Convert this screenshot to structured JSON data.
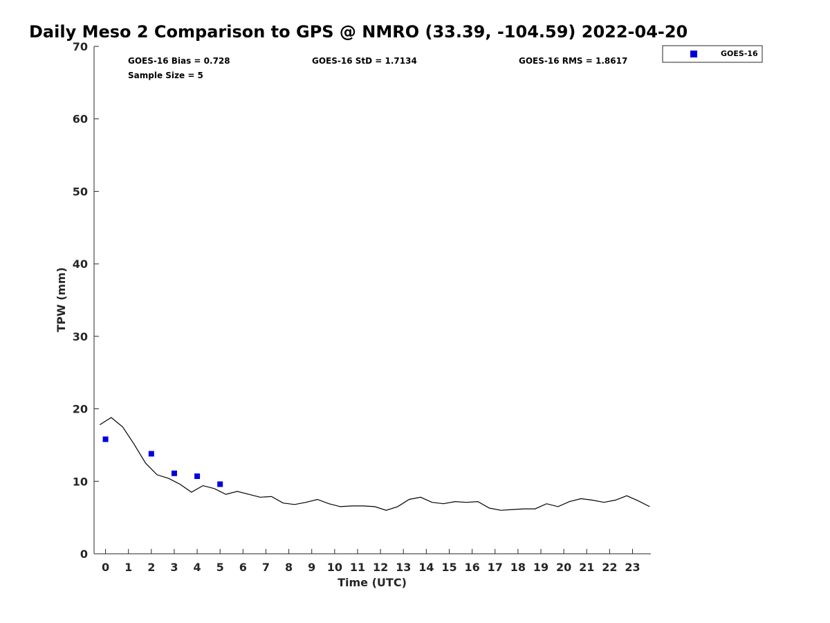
{
  "chart_data": {
    "type": "scatter",
    "title": "Daily Meso 2 Comparison to GPS @ NMRO (33.39, -104.59) 2022-04-20",
    "xlabel": "Time (UTC)",
    "ylabel": "TPW (mm)",
    "xlim": [
      -0.5,
      23.8
    ],
    "ylim": [
      0,
      70
    ],
    "xticks": [
      "0",
      "1",
      "2",
      "3",
      "4",
      "5",
      "6",
      "7",
      "8",
      "9",
      "10",
      "11",
      "12",
      "13",
      "14",
      "15",
      "16",
      "17",
      "18",
      "19",
      "20",
      "21",
      "22",
      "23"
    ],
    "yticks": [
      "0",
      "10",
      "20",
      "30",
      "40",
      "50",
      "60",
      "70"
    ],
    "grid": false,
    "legend_position": "top-right outside",
    "stats": {
      "bias": "GOES-16 Bias = 0.728",
      "sample_size": "Sample Size = 5",
      "std": "GOES-16 StD = 1.7134",
      "rms": "GOES-16 RMS = 1.8617"
    },
    "series": [
      {
        "name": "GOES-16",
        "kind": "scatter",
        "marker": "square",
        "color": "#0000dd",
        "x": [
          0,
          2,
          3,
          4,
          5
        ],
        "y": [
          15.8,
          13.8,
          11.1,
          10.7,
          9.6
        ]
      },
      {
        "kind": "line",
        "color": "#000000",
        "x": [
          -0.25,
          0.25,
          0.75,
          1.25,
          1.75,
          2.25,
          2.75,
          3.25,
          3.75,
          4.25,
          4.75,
          5.25,
          5.75,
          6.25,
          6.75,
          7.25,
          7.75,
          8.25,
          8.75,
          9.25,
          9.75,
          10.25,
          10.75,
          11.25,
          11.75,
          12.25,
          12.75,
          13.25,
          13.75,
          14.25,
          14.75,
          15.25,
          15.75,
          16.25,
          16.75,
          17.25,
          17.75,
          18.25,
          18.75,
          19.25,
          19.75,
          20.25,
          20.75,
          21.25,
          21.75,
          22.25,
          22.75,
          23.25,
          23.75
        ],
        "y": [
          17.8,
          18.8,
          17.5,
          15.1,
          12.5,
          10.9,
          10.4,
          9.6,
          8.5,
          9.4,
          9.0,
          8.2,
          8.6,
          8.2,
          7.8,
          7.9,
          7.0,
          6.8,
          7.1,
          7.5,
          6.9,
          6.5,
          6.6,
          6.6,
          6.5,
          6.0,
          6.5,
          7.5,
          7.8,
          7.1,
          6.9,
          7.2,
          7.1,
          7.2,
          6.3,
          6.0,
          6.1,
          6.2,
          6.2,
          6.9,
          6.5,
          7.2,
          7.6,
          7.4,
          7.1,
          7.4,
          8.0,
          7.3,
          6.5
        ]
      }
    ]
  }
}
